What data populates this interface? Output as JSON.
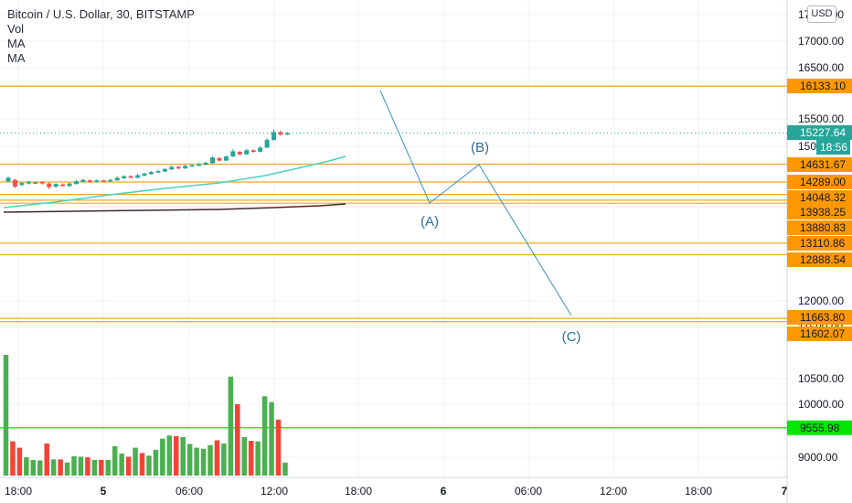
{
  "legend": {
    "title": "Bitcoin / U.S. Dollar, 30, BITSTAMP",
    "indicators": [
      "Vol",
      "MA",
      "MA"
    ]
  },
  "currency_button": "USD",
  "price_axis_ticks": [
    "17500.00",
    "17000.00",
    "16500.00",
    "15500.00",
    "12000.00",
    "11500.00",
    "10500.00",
    "10000.00",
    "9000.00"
  ],
  "time_axis_ticks": [
    "18:00",
    "5",
    "06:00",
    "12:00",
    "18:00",
    "6",
    "06:00",
    "12:00",
    "18:00",
    "7"
  ],
  "horizontal_levels": [
    {
      "value": 16133.1,
      "label": "16133.10"
    },
    {
      "value": 14631.67,
      "label": "14631.67"
    },
    {
      "value": 14289.0,
      "label": "14289.00"
    },
    {
      "value": 14048.32,
      "label": "14048.32"
    },
    {
      "value": 13938.25,
      "label": "13938.25"
    },
    {
      "value": 13880.83,
      "label": "13880.83"
    },
    {
      "value": 13110.86,
      "label": "13110.86"
    },
    {
      "value": 12888.54,
      "label": "12888.54"
    },
    {
      "value": 11663.8,
      "label": "11663.80"
    },
    {
      "value": 11602.07,
      "label": "11602.07"
    }
  ],
  "volume_level": {
    "value": 9555.98,
    "label": "9555.98"
  },
  "last_price": {
    "label": "15227.64",
    "countdown": "18:56"
  },
  "wave_labels": [
    "(A)",
    "(B)",
    "(C)"
  ],
  "colors": {
    "level_line": "#f5a623",
    "level_badge": "#ff9800",
    "volume_line": "#00e600",
    "last_price": "#26a69a",
    "candle_up": "#26a69a",
    "candle_down": "#ef5350",
    "volume_up": "#4caf50",
    "volume_down": "#f44336",
    "ma_fast": "#4dd0c3",
    "ma_slow": "#3b2b2b",
    "wave_line": "#3a8fc4",
    "wave_text": "#2e6f8f"
  }
}
